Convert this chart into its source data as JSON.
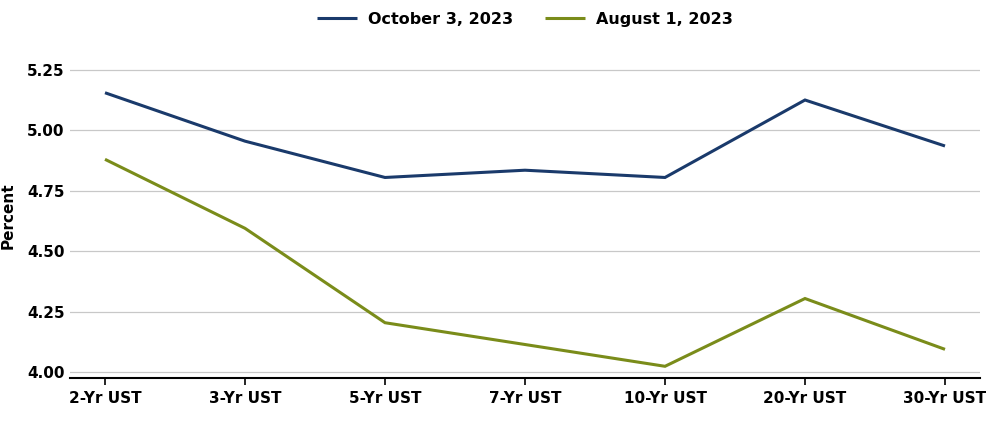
{
  "categories": [
    "2-Yr UST",
    "3-Yr UST",
    "5-Yr UST",
    "7-Yr UST",
    "10-Yr UST",
    "20-Yr UST",
    "30-Yr UST"
  ],
  "series": [
    {
      "label": "October 3, 2023",
      "values": [
        5.155,
        4.955,
        4.805,
        4.835,
        4.805,
        5.125,
        4.935
      ],
      "color": "#1a3a6b",
      "linewidth": 2.2
    },
    {
      "label": "August 1, 2023",
      "values": [
        4.88,
        4.595,
        4.205,
        4.115,
        4.025,
        4.305,
        4.095
      ],
      "color": "#7a8c1a",
      "linewidth": 2.2
    }
  ],
  "ylabel": "Percent",
  "ylim": [
    3.975,
    5.32
  ],
  "yticks": [
    4.0,
    4.25,
    4.5,
    4.75,
    5.0,
    5.25
  ],
  "background_color": "#ffffff",
  "grid_color": "#c8c8c8",
  "legend_fontsize": 11.5,
  "axis_label_fontsize": 11,
  "tick_fontsize": 11
}
